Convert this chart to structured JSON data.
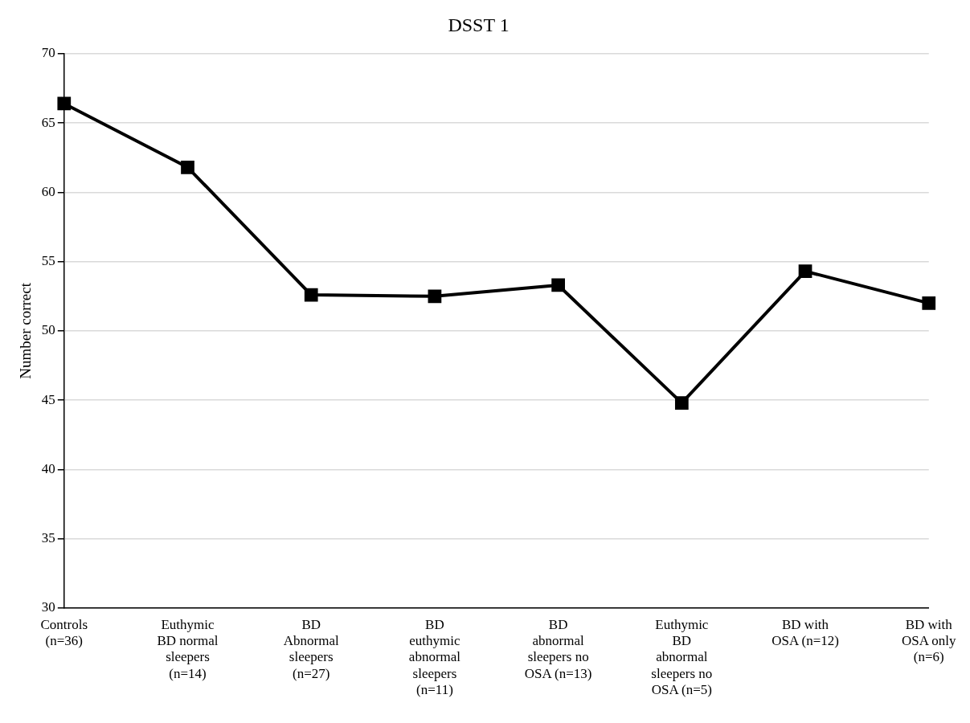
{
  "chart_data": {
    "type": "line",
    "title": "DSST 1",
    "ylabel": "Number correct",
    "categories": [
      "Controls (n=36)",
      "Euthymic BD normal sleepers (n=14)",
      "BD Abnormal sleepers (n=27)",
      "BD euthymic abnormal sleepers (n=11)",
      "BD abnormal sleepers no OSA (n=13)",
      "Euthymic BD abnormal sleepers no OSA (n=5)",
      "BD with OSA (n=12)",
      "BD with OSA only (n=6)"
    ],
    "series": [
      {
        "color": "#000000",
        "values": [
          66.4,
          61.8,
          52.6,
          52.5,
          53.3,
          44.8,
          54.3,
          52.0
        ]
      }
    ],
    "ylim": [
      30,
      70
    ],
    "yticks": [
      30,
      35,
      40,
      45,
      50,
      55,
      60,
      65,
      70
    ],
    "grid": "y",
    "legend": false,
    "marker": "square",
    "line_style": "solid"
  }
}
